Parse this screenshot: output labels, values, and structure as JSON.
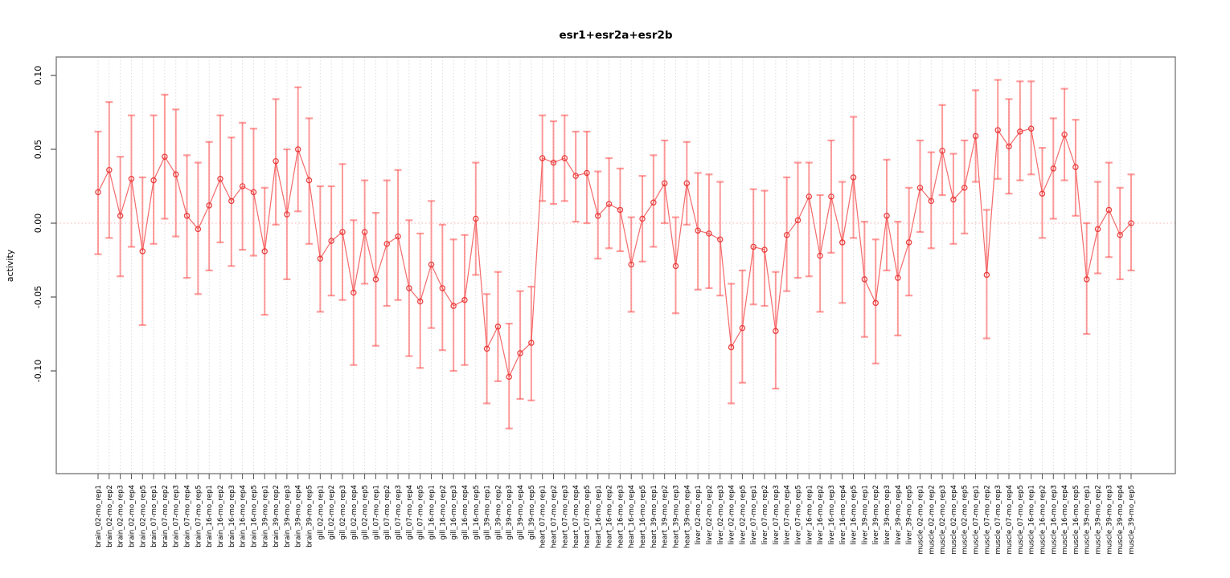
{
  "chart_data": {
    "type": "scatter",
    "title": "esr1+esr2a+esr2b",
    "ylabel": "activity",
    "xlabel": "",
    "legend": "none",
    "grid": "vertical dotted gridline at every category; dotted horizontal reference line at y=0",
    "ylim": [
      -0.155,
      0.107
    ],
    "yticks": [
      0.1,
      0.05,
      0.0,
      -0.05,
      -0.1
    ],
    "ytick_labels": [
      "0.10",
      "0.05",
      "0.00",
      "-0.05",
      "-0.10"
    ],
    "point_style": "open red circles connected by red line, with semi-transparent red error bars (caps)",
    "colors": {
      "point": "#e83030",
      "line": "#f25050",
      "error_bar": "#ff4444",
      "zero_line": "#ffb0b0",
      "gridline": "#dcdcdc",
      "box": "#7d7d7d",
      "tick": "#555555"
    },
    "categories": [
      "brain_02-mo_rep1",
      "brain_02-mo_rep2",
      "brain_02-mo_rep3",
      "brain_02-mo_rep4",
      "brain_02-mo_rep5",
      "brain_07-mo_rep1",
      "brain_07-mo_rep2",
      "brain_07-mo_rep3",
      "brain_07-mo_rep4",
      "brain_07-mo_rep5",
      "brain_16-mo_rep1",
      "brain_16-mo_rep2",
      "brain_16-mo_rep3",
      "brain_16-mo_rep4",
      "brain_16-mo_rep5",
      "brain_39-mo_rep1",
      "brain_39-mo_rep2",
      "brain_39-mo_rep3",
      "brain_39-mo_rep4",
      "brain_39-mo_rep5",
      "gill_02-mo_rep1",
      "gill_02-mo_rep2",
      "gill_02-mo_rep3",
      "gill_02-mo_rep4",
      "gill_02-mo_rep5",
      "gill_07-mo_rep1",
      "gill_07-mo_rep2",
      "gill_07-mo_rep3",
      "gill_07-mo_rep4",
      "gill_07-mo_rep5",
      "gill_16-mo_rep1",
      "gill_16-mo_rep2",
      "gill_16-mo_rep3",
      "gill_16-mo_rep4",
      "gill_16-mo_rep5",
      "gill_39-mo_rep1",
      "gill_39-mo_rep2",
      "gill_39-mo_rep3",
      "gill_39-mo_rep4",
      "gill_39-mo_rep5",
      "heart_07-mo_rep1",
      "heart_07-mo_rep2",
      "heart_07-mo_rep3",
      "heart_07-mo_rep4",
      "heart_07-mo_rep5",
      "heart_16-mo_rep1",
      "heart_16-mo_rep2",
      "heart_16-mo_rep3",
      "heart_16-mo_rep4",
      "heart_16-mo_rep5",
      "heart_39-mo_rep1",
      "heart_39-mo_rep2",
      "heart_39-mo_rep3",
      "heart_39-mo_rep4",
      "liver_02-mo_rep1",
      "liver_02-mo_rep2",
      "liver_02-mo_rep3",
      "liver_02-mo_rep4",
      "liver_02-mo_rep5",
      "liver_07-mo_rep1",
      "liver_07-mo_rep2",
      "liver_07-mo_rep3",
      "liver_07-mo_rep4",
      "liver_07-mo_rep5",
      "liver_16-mo_rep1",
      "liver_16-mo_rep2",
      "liver_16-mo_rep3",
      "liver_16-mo_rep4",
      "liver_16-mo_rep5",
      "liver_39-mo_rep1",
      "liver_39-mo_rep2",
      "liver_39-mo_rep3",
      "liver_39-mo_rep4",
      "liver_39-mo_rep5",
      "muscle_02-mo_rep1",
      "muscle_02-mo_rep2",
      "muscle_02-mo_rep3",
      "muscle_02-mo_rep4",
      "muscle_02-mo_rep5",
      "muscle_07-mo_rep1",
      "muscle_07-mo_rep2",
      "muscle_07-mo_rep3",
      "muscle_07-mo_rep4",
      "muscle_07-mo_rep5",
      "muscle_16-mo_rep1",
      "muscle_16-mo_rep2",
      "muscle_16-mo_rep3",
      "muscle_16-mo_rep4",
      "muscle_16-mo_rep5",
      "muscle_39-mo_rep1",
      "muscle_39-mo_rep2",
      "muscle_39-mo_rep3",
      "muscle_39-mo_rep4",
      "muscle_39-mo_rep5"
    ],
    "series": [
      {
        "name": "activity mean",
        "values": [
          0.021,
          0.036,
          0.005,
          0.03,
          -0.019,
          0.029,
          0.045,
          0.033,
          0.005,
          -0.004,
          0.012,
          0.03,
          0.015,
          0.025,
          0.021,
          -0.019,
          0.042,
          0.006,
          0.05,
          0.029,
          -0.024,
          -0.012,
          -0.006,
          -0.047,
          -0.006,
          -0.038,
          -0.014,
          -0.009,
          -0.044,
          -0.053,
          -0.028,
          -0.044,
          -0.056,
          -0.052,
          0.003,
          -0.085,
          -0.07,
          -0.104,
          -0.088,
          -0.081,
          0.044,
          0.041,
          0.044,
          0.032,
          0.034,
          0.005,
          0.013,
          0.009,
          -0.028,
          0.003,
          0.014,
          0.027,
          -0.029,
          0.027,
          -0.005,
          -0.007,
          -0.011,
          -0.084,
          -0.071,
          -0.016,
          -0.018,
          -0.073,
          -0.008,
          0.002,
          0.018,
          -0.022,
          0.018,
          -0.013,
          0.031,
          -0.038,
          -0.054,
          0.005,
          -0.037,
          -0.013,
          0.024,
          0.015,
          0.049,
          0.016,
          0.024,
          0.059,
          -0.035,
          0.063,
          0.052,
          0.062,
          0.064,
          0.02,
          0.037,
          0.06,
          0.038,
          -0.038,
          -0.004,
          0.009,
          -0.008,
          0.0
        ]
      },
      {
        "name": "error bar lower",
        "values": [
          -0.021,
          -0.01,
          -0.036,
          -0.016,
          -0.069,
          -0.014,
          0.003,
          -0.009,
          -0.037,
          -0.048,
          -0.032,
          -0.013,
          -0.029,
          -0.018,
          -0.022,
          -0.062,
          -0.001,
          -0.038,
          0.008,
          -0.014,
          -0.06,
          -0.049,
          -0.052,
          -0.096,
          -0.041,
          -0.083,
          -0.056,
          -0.052,
          -0.09,
          -0.098,
          -0.071,
          -0.086,
          -0.1,
          -0.096,
          -0.035,
          -0.122,
          -0.107,
          -0.139,
          -0.119,
          -0.12,
          0.015,
          0.013,
          0.015,
          0.001,
          0.0,
          -0.024,
          -0.017,
          -0.019,
          -0.06,
          -0.026,
          -0.016,
          0.0,
          -0.061,
          -0.001,
          -0.045,
          -0.044,
          -0.049,
          -0.122,
          -0.108,
          -0.055,
          -0.056,
          -0.112,
          -0.046,
          -0.037,
          -0.036,
          -0.06,
          -0.02,
          -0.054,
          -0.01,
          -0.077,
          -0.095,
          -0.032,
          -0.076,
          -0.049,
          -0.006,
          -0.017,
          0.019,
          -0.014,
          -0.007,
          0.028,
          -0.078,
          0.03,
          0.02,
          0.029,
          0.033,
          -0.01,
          0.003,
          0.029,
          0.005,
          -0.075,
          -0.034,
          -0.023,
          -0.038,
          -0.032
        ]
      },
      {
        "name": "error bar upper",
        "values": [
          0.062,
          0.082,
          0.045,
          0.073,
          0.031,
          0.073,
          0.087,
          0.077,
          0.046,
          0.041,
          0.055,
          0.073,
          0.058,
          0.068,
          0.064,
          0.024,
          0.084,
          0.05,
          0.092,
          0.071,
          0.025,
          0.025,
          0.04,
          0.002,
          0.029,
          0.007,
          0.029,
          0.036,
          0.002,
          -0.007,
          0.015,
          -0.001,
          -0.011,
          -0.008,
          0.041,
          -0.048,
          -0.033,
          -0.068,
          -0.046,
          -0.043,
          0.073,
          0.069,
          0.073,
          0.062,
          0.062,
          0.035,
          0.044,
          0.037,
          0.004,
          0.032,
          0.046,
          0.056,
          0.004,
          0.055,
          0.034,
          0.033,
          0.028,
          -0.041,
          -0.032,
          0.023,
          0.022,
          -0.033,
          0.031,
          0.041,
          0.041,
          0.019,
          0.056,
          0.028,
          0.072,
          0.001,
          -0.011,
          0.043,
          0.001,
          0.024,
          0.056,
          0.048,
          0.08,
          0.047,
          0.056,
          0.09,
          0.009,
          0.097,
          0.084,
          0.096,
          0.096,
          0.051,
          0.071,
          0.091,
          0.07,
          0.0,
          0.028,
          0.041,
          0.024,
          0.033
        ]
      }
    ]
  }
}
